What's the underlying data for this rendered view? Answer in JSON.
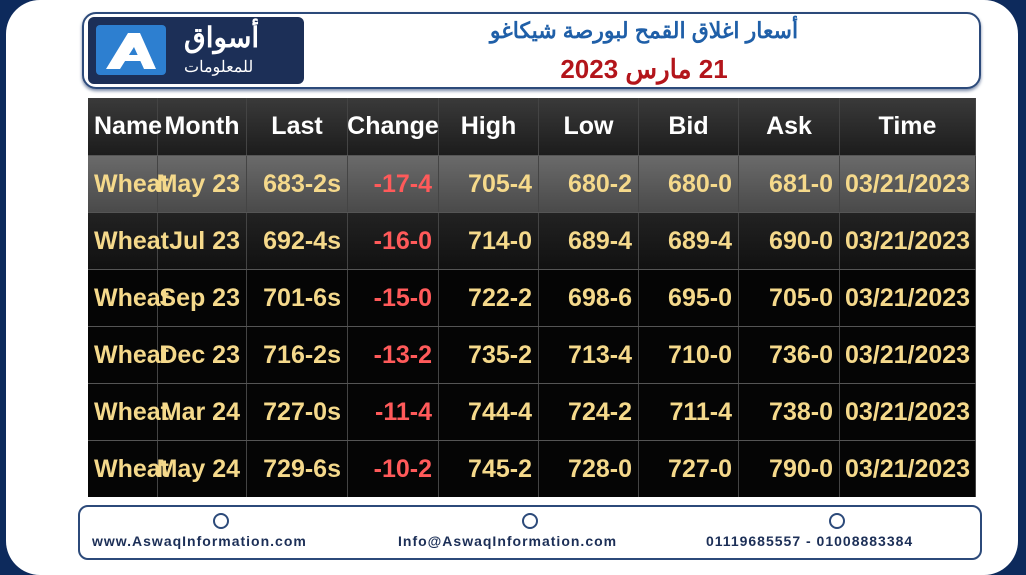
{
  "header": {
    "logo": {
      "name": "أسواق",
      "tagline": "للمعلومات"
    },
    "title": "أسعار اغلاق القمح لبورصة شيكاغو",
    "date": "21 مارس 2023"
  },
  "table": {
    "columns": [
      "Name",
      "Month",
      "Last",
      "Change",
      "High",
      "Low",
      "Bid",
      "Ask",
      "Time"
    ],
    "rows": [
      [
        "Wheat",
        "May 23",
        "683-2s",
        "-17-4",
        "705-4",
        "680-2",
        "680-0",
        "681-0",
        "03/21/2023"
      ],
      [
        "Wheat",
        "Jul 23",
        "692-4s",
        "-16-0",
        "714-0",
        "689-4",
        "689-4",
        "690-0",
        "03/21/2023"
      ],
      [
        "Wheat",
        "Sep 23",
        "701-6s",
        "-15-0",
        "722-2",
        "698-6",
        "695-0",
        "705-0",
        "03/21/2023"
      ],
      [
        "Wheat",
        "Dec 23",
        "716-2s",
        "-13-2",
        "735-2",
        "713-4",
        "710-0",
        "736-0",
        "03/21/2023"
      ],
      [
        "Wheat",
        "Mar 24",
        "727-0s",
        "-11-4",
        "744-4",
        "724-2",
        "711-4",
        "738-0",
        "03/21/2023"
      ],
      [
        "Wheat",
        "May 24",
        "729-6s",
        "-10-2",
        "745-2",
        "728-0",
        "727-0",
        "790-0",
        "03/21/2023"
      ]
    ]
  },
  "footer": {
    "website": "www.AswaqInformation.com",
    "email": "Info@AswaqInformation.com",
    "phones": "01119685557 - 01008883384"
  }
}
